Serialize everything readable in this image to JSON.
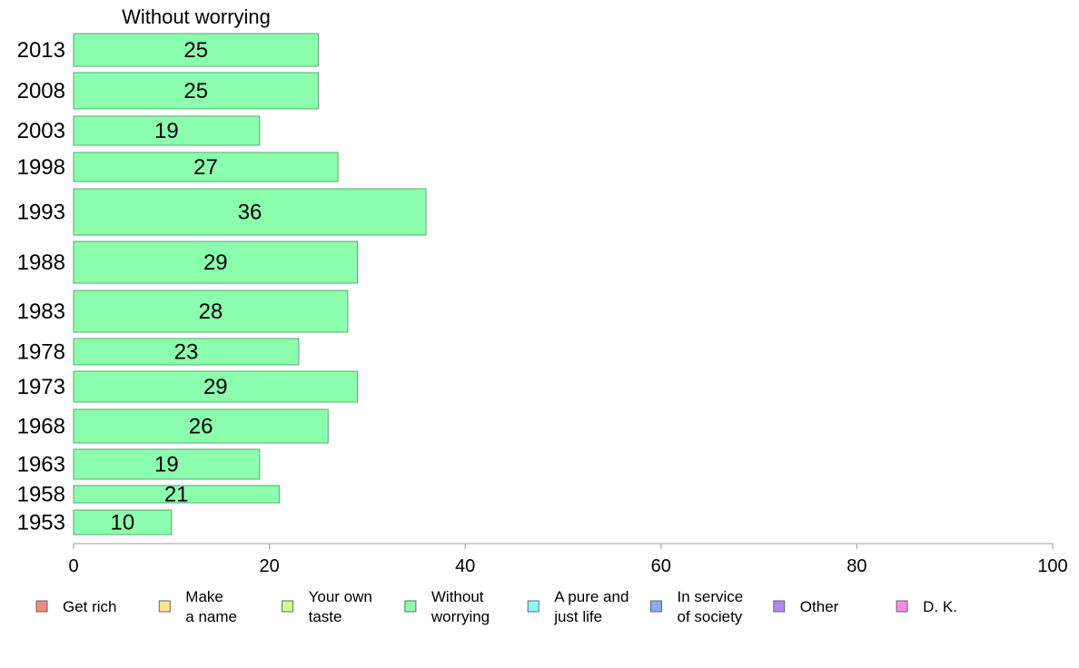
{
  "chart_data": {
    "type": "bar",
    "orientation": "horizontal",
    "title": "Without worrying",
    "categories": [
      "2013",
      "2008",
      "2003",
      "1998",
      "1993",
      "1988",
      "1983",
      "1978",
      "1973",
      "1968",
      "1963",
      "1958",
      "1953"
    ],
    "values": [
      25,
      25,
      19,
      27,
      36,
      29,
      28,
      23,
      29,
      26,
      19,
      21,
      10
    ],
    "xlim": [
      0,
      100
    ],
    "xticks": [
      "0",
      "20",
      "40",
      "60",
      "80",
      "100"
    ],
    "grid": false,
    "series_color": "#8BFFAD",
    "legend_position": "bottom",
    "legend": [
      {
        "label": [
          "Get rich"
        ],
        "color": "#F78787"
      },
      {
        "label": [
          "Make",
          "a name"
        ],
        "color": "#FFE78A"
      },
      {
        "label": [
          "Your own",
          "taste"
        ],
        "color": "#D4FF8A"
      },
      {
        "label": [
          "Without",
          "worrying"
        ],
        "color": "#8BFFAD"
      },
      {
        "label": [
          "A pure and",
          "just life"
        ],
        "color": "#8AFFF7"
      },
      {
        "label": [
          "In service",
          "of society"
        ],
        "color": "#8AA8F5"
      },
      {
        "label": [
          "Other"
        ],
        "color": "#B387F5"
      },
      {
        "label": [
          "D. K."
        ],
        "color": "#F78AE6"
      }
    ]
  }
}
